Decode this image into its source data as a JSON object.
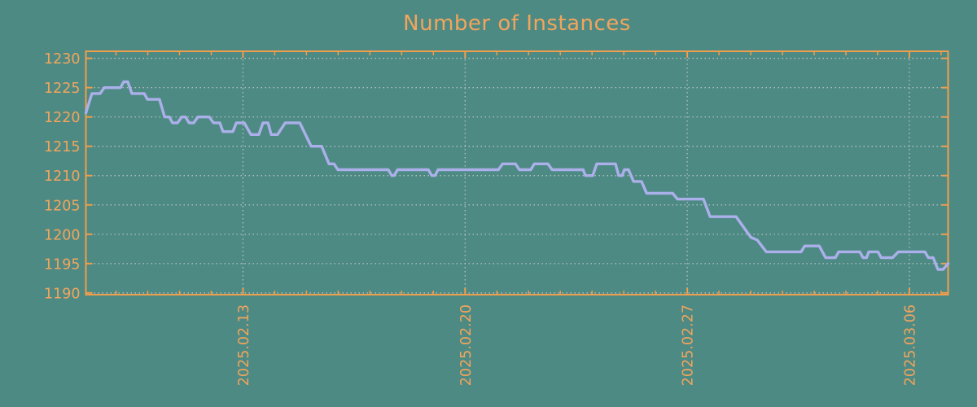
{
  "colors": {
    "background": "#4e8a84",
    "axis_orange": "#ef9e4d",
    "label_orange": "#f2a55c",
    "grid_gray": "#bcc5c3",
    "line_lavender": "#abb0ea"
  },
  "chart_data": {
    "type": "line",
    "title": "Number of Instances",
    "legend": "none",
    "grid": "dotted",
    "x_axis": {
      "epoch_date": "2025-02-08",
      "domain_days": [
        0.05,
        27.22
      ],
      "major_tick_days": [
        5,
        12,
        19,
        26
      ],
      "major_tick_labels": [
        "2025.02.13",
        "2025.02.20",
        "2025.02.27",
        "2025.03.06"
      ],
      "minor_tick_interval_days": 1,
      "label_rotation_deg": -90
    },
    "y_axis": {
      "range": [
        1189.7,
        1231.2
      ],
      "ticks": [
        1190,
        1195,
        1200,
        1205,
        1210,
        1215,
        1220,
        1225,
        1230
      ],
      "tick_labels": [
        "1190",
        "1195",
        "1200",
        "1205",
        "1210",
        "1215",
        "1220",
        "1225",
        "1230"
      ]
    },
    "series": [
      {
        "name": "instances",
        "color": "#abb0ea",
        "points_day_value": [
          [
            0.05,
            1220.7
          ],
          [
            0.24,
            1224
          ],
          [
            0.5,
            1224
          ],
          [
            0.63,
            1225
          ],
          [
            1.14,
            1225
          ],
          [
            1.24,
            1226
          ],
          [
            1.37,
            1226
          ],
          [
            1.5,
            1224
          ],
          [
            1.89,
            1224
          ],
          [
            1.99,
            1223
          ],
          [
            2.37,
            1223
          ],
          [
            2.53,
            1220
          ],
          [
            2.68,
            1220
          ],
          [
            2.78,
            1219
          ],
          [
            2.94,
            1219
          ],
          [
            3.07,
            1220
          ],
          [
            3.19,
            1220
          ],
          [
            3.3,
            1219
          ],
          [
            3.45,
            1219
          ],
          [
            3.58,
            1220
          ],
          [
            3.94,
            1220
          ],
          [
            4.07,
            1219
          ],
          [
            4.27,
            1219
          ],
          [
            4.37,
            1217.5
          ],
          [
            4.68,
            1217.5
          ],
          [
            4.79,
            1219
          ],
          [
            5.04,
            1219
          ],
          [
            5.25,
            1217
          ],
          [
            5.5,
            1217
          ],
          [
            5.63,
            1219
          ],
          [
            5.79,
            1219
          ],
          [
            5.89,
            1217
          ],
          [
            6.09,
            1217
          ],
          [
            6.33,
            1219
          ],
          [
            6.79,
            1219
          ],
          [
            7.15,
            1215
          ],
          [
            7.48,
            1215
          ],
          [
            7.71,
            1212
          ],
          [
            7.87,
            1212
          ],
          [
            7.99,
            1211
          ],
          [
            9.58,
            1211
          ],
          [
            9.69,
            1210
          ],
          [
            9.76,
            1210
          ],
          [
            9.87,
            1211
          ],
          [
            10.84,
            1211
          ],
          [
            10.95,
            1210
          ],
          [
            11.05,
            1210
          ],
          [
            11.15,
            1211
          ],
          [
            13.05,
            1211
          ],
          [
            13.18,
            1212
          ],
          [
            13.59,
            1212
          ],
          [
            13.71,
            1211
          ],
          [
            14.07,
            1211
          ],
          [
            14.18,
            1212
          ],
          [
            14.61,
            1212
          ],
          [
            14.74,
            1211
          ],
          [
            15.72,
            1211
          ],
          [
            15.79,
            1210
          ],
          [
            16.02,
            1210
          ],
          [
            16.15,
            1212
          ],
          [
            16.74,
            1212
          ],
          [
            16.84,
            1210
          ],
          [
            16.95,
            1210
          ],
          [
            17.02,
            1211
          ],
          [
            17.15,
            1211
          ],
          [
            17.31,
            1209
          ],
          [
            17.56,
            1209
          ],
          [
            17.72,
            1207
          ],
          [
            18.54,
            1207
          ],
          [
            18.69,
            1206
          ],
          [
            19.51,
            1206
          ],
          [
            19.72,
            1203
          ],
          [
            20.54,
            1203
          ],
          [
            21.0,
            1199.5
          ],
          [
            21.21,
            1199
          ],
          [
            21.49,
            1197
          ],
          [
            22.59,
            1197
          ],
          [
            22.7,
            1198
          ],
          [
            23.16,
            1198
          ],
          [
            23.36,
            1196
          ],
          [
            23.67,
            1196
          ],
          [
            23.77,
            1197
          ],
          [
            24.44,
            1197
          ],
          [
            24.54,
            1196
          ],
          [
            24.65,
            1196
          ],
          [
            24.72,
            1197
          ],
          [
            25.01,
            1197
          ],
          [
            25.11,
            1196
          ],
          [
            25.47,
            1196
          ],
          [
            25.65,
            1197
          ],
          [
            26.49,
            1197
          ],
          [
            26.6,
            1196
          ],
          [
            26.75,
            1196
          ],
          [
            26.9,
            1194
          ],
          [
            27.06,
            1194
          ],
          [
            27.22,
            1195
          ]
        ]
      }
    ]
  }
}
